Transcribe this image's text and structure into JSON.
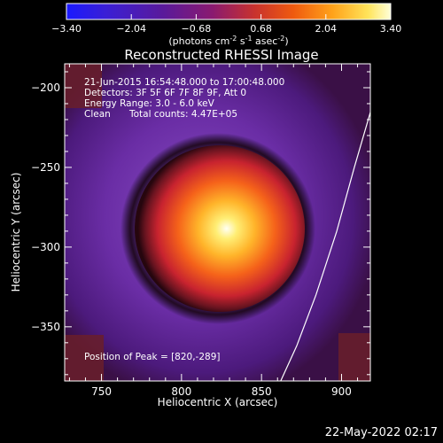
{
  "colorbar": {
    "ticks": [
      "-3.40",
      "-2.04",
      "-0.68",
      "0.68",
      "2.04",
      "3.40"
    ],
    "unit_main": "(photons cm",
    "unit_exp1": "-2",
    "unit_mid": " s",
    "unit_exp2": "-1",
    "unit_tail": " asec",
    "unit_exp3": "-2",
    "unit_close": ")"
  },
  "chart_data": {
    "type": "heatmap",
    "title": "Reconstructed RHESSI Image",
    "xlabel": "Heliocentric X (arcsec)",
    "ylabel": "Heliocentric Y (arcsec)",
    "xlim": [
      727,
      918
    ],
    "ylim": [
      -384,
      -185
    ],
    "x_ticks": [
      "750",
      "800",
      "850",
      "900"
    ],
    "y_ticks": [
      "-200",
      "-250",
      "-300",
      "-350"
    ],
    "x_tick_values": [
      750,
      800,
      850,
      900
    ],
    "y_tick_values": [
      -200,
      -250,
      -300,
      -350
    ],
    "colorbar_range": [
      -3.4,
      3.4
    ],
    "peak": [
      820,
      -289
    ],
    "limb": [
      [
        919,
        -212
      ],
      [
        908,
        -250
      ],
      [
        897,
        -290
      ],
      [
        884,
        -330
      ],
      [
        872,
        -362
      ],
      [
        862,
        -384
      ]
    ],
    "annotations": [
      "21-Jun-2015 16:54:48.000 to 17:00:48.000",
      "Detectors: 3F 5F 6F 7F 8F 9F, Att 0",
      "Energy Range: 3.0 - 6.0 keV",
      "Clean",
      "Total counts: 4.47E+05",
      "Position of Peak = [820,-289]"
    ]
  },
  "footer_date": "22-May-2022 02:17",
  "colors": {
    "background": "#000000",
    "limb_line": "#ffffff"
  }
}
